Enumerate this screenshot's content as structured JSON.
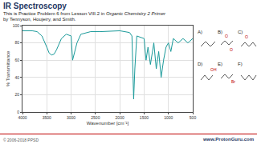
{
  "header": {
    "title": "IR Spectroscopy",
    "subtitle": [
      "This is Practice Problem 6 from Lesson VIII.2 in ",
      "Organic Chemistry 2 Primer",
      "by Tennyson, Houjeiry, and Smith."
    ]
  },
  "chart_data": {
    "type": "line",
    "x_label": "Wavenumber [cm⁻¹]",
    "y_label": "% Transmittance",
    "x": [
      4000,
      3800,
      3700,
      3600,
      3500,
      3450,
      3400,
      3350,
      3300,
      3200,
      3100,
      3000,
      2970,
      2930,
      2880,
      2800,
      2600,
      2400,
      2000,
      1800,
      1750,
      1715,
      1690,
      1650,
      1500,
      1460,
      1420,
      1370,
      1300,
      1250,
      1200,
      1150,
      1100,
      1050,
      1000,
      950,
      900,
      800,
      700,
      600,
      500
    ],
    "series": [
      {
        "color": "#1a9a9a",
        "values": [
          94,
          94,
          93,
          88,
          75,
          68,
          66,
          67,
          72,
          85,
          90,
          88,
          60,
          70,
          80,
          90,
          93,
          93,
          94,
          92,
          88,
          15,
          50,
          88,
          85,
          60,
          75,
          55,
          80,
          50,
          70,
          40,
          60,
          75,
          80,
          70,
          85,
          80,
          85,
          80,
          85
        ]
      }
    ],
    "xlim": [
      4000,
      500
    ],
    "xticks": [
      4000,
      3500,
      3000,
      2500,
      2000,
      1500,
      1000,
      500
    ],
    "ylim": [
      0,
      100
    ],
    "yticks": [
      0,
      20,
      40,
      60,
      80,
      100
    ],
    "grid": true
  },
  "options": [
    {
      "label": "A)",
      "atoms": []
    },
    {
      "label": "B)",
      "atoms": [
        "O",
        "O"
      ]
    },
    {
      "label": "C)",
      "atoms": [
        "O"
      ]
    },
    {
      "label": "D)",
      "atoms": [
        "OH"
      ]
    },
    {
      "label": "E)",
      "atoms": [
        "Br"
      ]
    },
    {
      "label": "F)",
      "atoms": []
    }
  ],
  "footer": {
    "left": "© 2006-2018 PPSD",
    "right": "www.ProtonGuru.com"
  }
}
